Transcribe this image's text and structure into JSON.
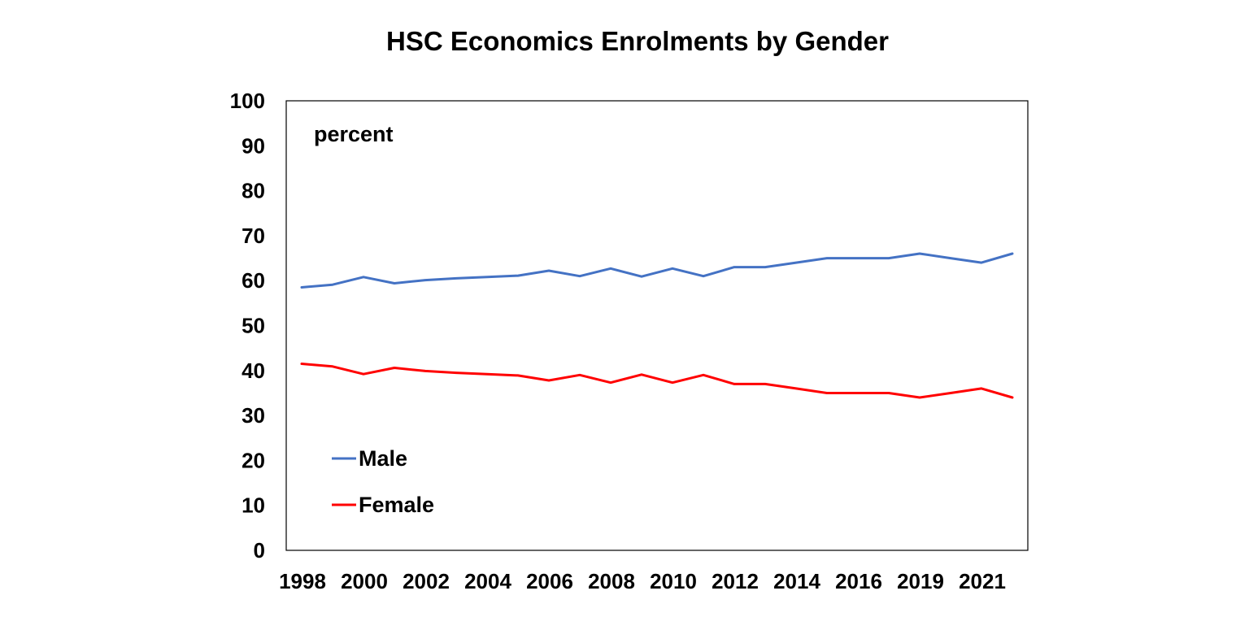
{
  "chart_data": {
    "type": "line",
    "title": "HSC Economics Enrolments by Gender",
    "unit_label": "percent",
    "xlabel": "",
    "ylabel": "",
    "ylim": [
      0,
      100
    ],
    "yticks": [
      0,
      10,
      20,
      30,
      40,
      50,
      60,
      70,
      80,
      90,
      100
    ],
    "x": [
      1998,
      1999,
      2000,
      2001,
      2002,
      2003,
      2004,
      2005,
      2006,
      2007,
      2008,
      2009,
      2010,
      2011,
      2012,
      2013,
      2014,
      2015,
      2016,
      2017,
      2019,
      2020,
      2021,
      2022
    ],
    "x_tick_labels": [
      "1998",
      "2000",
      "2002",
      "2004",
      "2006",
      "2008",
      "2010",
      "2012",
      "2014",
      "2016",
      "2019",
      "2021"
    ],
    "grid": false,
    "legend_position": "bottom-left",
    "series": [
      {
        "name": "Male",
        "color": "#4472C4",
        "values": [
          58.5,
          59.1,
          60.8,
          59.4,
          60.1,
          60.5,
          60.8,
          61.1,
          62.2,
          61.0,
          62.7,
          60.9,
          62.7,
          61.0,
          63.0,
          63.0,
          64.0,
          65.0,
          65.0,
          65.0,
          66.0,
          65.0,
          64.0,
          66.0
        ]
      },
      {
        "name": "Female",
        "color": "#FF0000",
        "values": [
          41.5,
          40.9,
          39.2,
          40.6,
          39.9,
          39.5,
          39.2,
          38.9,
          37.8,
          39.0,
          37.3,
          39.1,
          37.3,
          39.0,
          37.0,
          37.0,
          36.0,
          35.0,
          35.0,
          35.0,
          34.0,
          35.0,
          36.0,
          34.0
        ]
      }
    ]
  }
}
